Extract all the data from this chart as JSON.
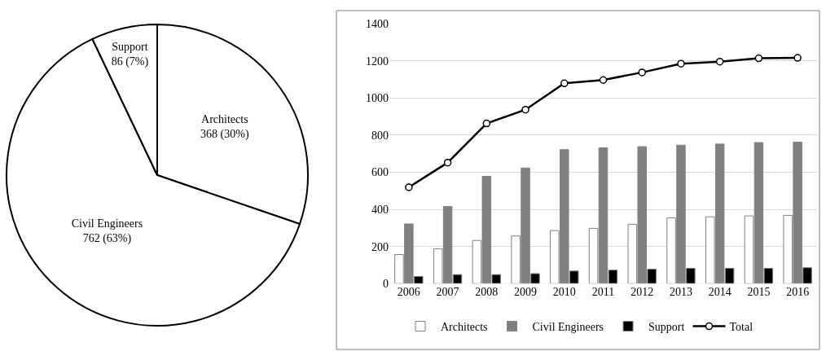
{
  "chart_data": [
    {
      "type": "pie",
      "categories": [
        "Architects",
        "Civil Engineers",
        "Support"
      ],
      "values": [
        368,
        762,
        86
      ],
      "colors": [
        "#ffffff",
        "#ffffff",
        "#ffffff"
      ],
      "value_labels": [
        "368 (30%)",
        "762 (63%)",
        "86 (7%)"
      ],
      "legend": false
    },
    {
      "type": "bar",
      "categories": [
        "2006",
        "2007",
        "2008",
        "2009",
        "2010",
        "2011",
        "2012",
        "2013",
        "2014",
        "2015",
        "2016"
      ],
      "ylim": [
        0,
        1400
      ],
      "yticks": [
        0,
        200,
        400,
        600,
        800,
        1000,
        1200,
        1400
      ],
      "grid": "y",
      "legend": "bottom",
      "series": [
        {
          "name": "Architects",
          "color": "#ffffff",
          "values": [
            157,
            188,
            233,
            257,
            286,
            298,
            320,
            355,
            360,
            365,
            368
          ]
        },
        {
          "name": "Civil Engineers",
          "color": "#808080",
          "values": [
            322,
            416,
            578,
            623,
            722,
            732,
            738,
            746,
            752,
            760,
            762
          ]
        },
        {
          "name": "Support",
          "color": "#000000",
          "values": [
            39,
            49,
            49,
            54,
            68,
            73,
            78,
            83,
            83,
            83,
            86
          ]
        },
        {
          "name": "Total",
          "type": "line",
          "color": "#000000",
          "marker": "circle",
          "line_style": "solid",
          "values": [
            519,
            652,
            863,
            937,
            1079,
            1097,
            1138,
            1185,
            1196,
            1214,
            1216
          ]
        }
      ]
    }
  ]
}
